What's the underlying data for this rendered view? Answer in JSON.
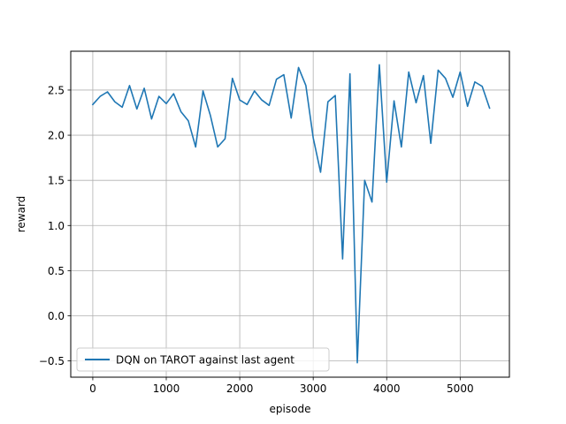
{
  "chart_data": {
    "type": "line",
    "title": "",
    "xlabel": "episode",
    "ylabel": "reward",
    "xlim": [
      -300,
      5670
    ],
    "ylim": [
      -0.68,
      2.93
    ],
    "xticks": [
      0,
      1000,
      2000,
      3000,
      4000,
      5000
    ],
    "yticks": [
      -0.5,
      0.0,
      0.5,
      1.0,
      1.5,
      2.0,
      2.5
    ],
    "xtick_labels": [
      "0",
      "1000",
      "2000",
      "3000",
      "4000",
      "5000"
    ],
    "ytick_labels": [
      "−0.5",
      "0.0",
      "0.5",
      "1.0",
      "1.5",
      "2.0",
      "2.5"
    ],
    "grid": true,
    "legend_position": "lower-left",
    "series": [
      {
        "name": "DQN on TAROT against last agent",
        "color": "#1f77b4",
        "x": [
          0,
          100,
          200,
          300,
          400,
          500,
          600,
          700,
          800,
          900,
          1000,
          1100,
          1200,
          1300,
          1400,
          1500,
          1600,
          1700,
          1800,
          1900,
          2000,
          2100,
          2200,
          2300,
          2400,
          2500,
          2600,
          2700,
          2800,
          2900,
          3000,
          3100,
          3200,
          3300,
          3400,
          3500,
          3600,
          3700,
          3800,
          3900,
          4000,
          4100,
          4200,
          4300,
          4400,
          4500,
          4600,
          4700,
          4800,
          4900,
          5000,
          5100,
          5200,
          5300,
          5400
        ],
        "values": [
          2.34,
          2.43,
          2.48,
          2.37,
          2.31,
          2.55,
          2.29,
          2.52,
          2.18,
          2.43,
          2.35,
          2.46,
          2.26,
          2.16,
          1.87,
          2.49,
          2.22,
          1.87,
          1.96,
          2.63,
          2.39,
          2.34,
          2.49,
          2.39,
          2.33,
          2.62,
          2.67,
          2.19,
          2.75,
          2.55,
          1.97,
          1.59,
          2.37,
          2.44,
          0.63,
          2.68,
          -0.52,
          1.5,
          1.26,
          2.78,
          1.48,
          2.38,
          1.87,
          2.7,
          2.36,
          2.66,
          1.91,
          2.72,
          2.63,
          2.42,
          2.7,
          2.32,
          2.59,
          2.54,
          2.3
        ]
      }
    ]
  }
}
